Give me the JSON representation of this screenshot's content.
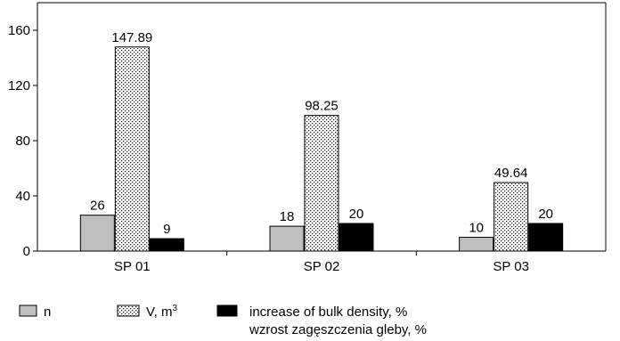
{
  "chart_data": {
    "type": "bar",
    "categories": [
      "SP 01",
      "SP 02",
      "SP 03"
    ],
    "series": [
      {
        "name": "n",
        "values": [
          26,
          18,
          10
        ],
        "fill": "gray"
      },
      {
        "name": "V, m",
        "name_sup": "3",
        "values": [
          147.89,
          98.25,
          49.64
        ],
        "fill": "dotted"
      },
      {
        "name": "increase of bulk density, %",
        "name_line2": "wzrost zagęszczenia gleby, %",
        "values": [
          9,
          20,
          20
        ],
        "fill": "black"
      }
    ],
    "data_labels": [
      [
        "26",
        "147.89",
        "9"
      ],
      [
        "18",
        "98.25",
        "20"
      ],
      [
        "10",
        "49.64",
        "20"
      ]
    ],
    "y_ticks": [
      "0",
      "40",
      "80",
      "120",
      "160"
    ],
    "ylim": [
      0,
      180
    ],
    "grid": false,
    "legend_position": "bottom",
    "colors": {
      "gray": "#bfbfbf",
      "black": "#000000",
      "axis": "#000000"
    }
  }
}
